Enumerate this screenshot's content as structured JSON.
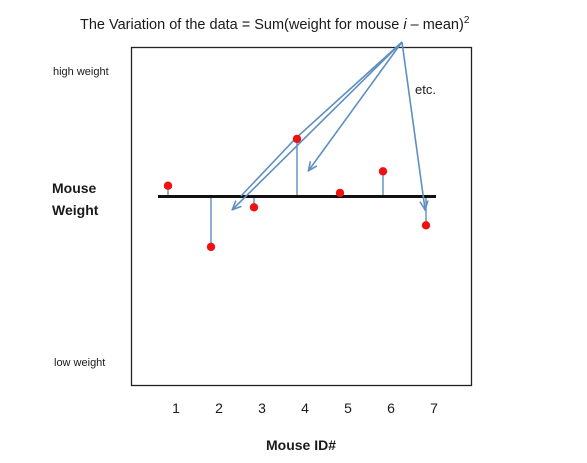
{
  "title": {
    "prefix": "The Variation of the data = Sum(weight for mouse ",
    "italic": "i",
    "suffix": " – mean)",
    "superscript": "2"
  },
  "y_axis": {
    "top_label": "high weight",
    "bottom_label": "low weight",
    "main_label_line1": "Mouse",
    "main_label_line2": "Weight"
  },
  "x_axis": {
    "label": "Mouse ID#",
    "ticks": [
      "1",
      "2",
      "3",
      "4",
      "5",
      "6",
      "7"
    ]
  },
  "annotation": "etc.",
  "colors": {
    "point": "#ee1111",
    "mean_line": "#111111",
    "residual": "#4f86b8",
    "arrow": "#5e8fc0",
    "frame": "#222222"
  },
  "chart_data": {
    "type": "scatter",
    "x": [
      1,
      2,
      3,
      4,
      5,
      6,
      7
    ],
    "y_relative_to_mean": [
      0.3,
      -1.4,
      -0.3,
      1.6,
      0.1,
      0.7,
      -0.8
    ],
    "mean": 0,
    "note": "points show relative mouse weight; vertical lines mark distance to the mean line"
  }
}
